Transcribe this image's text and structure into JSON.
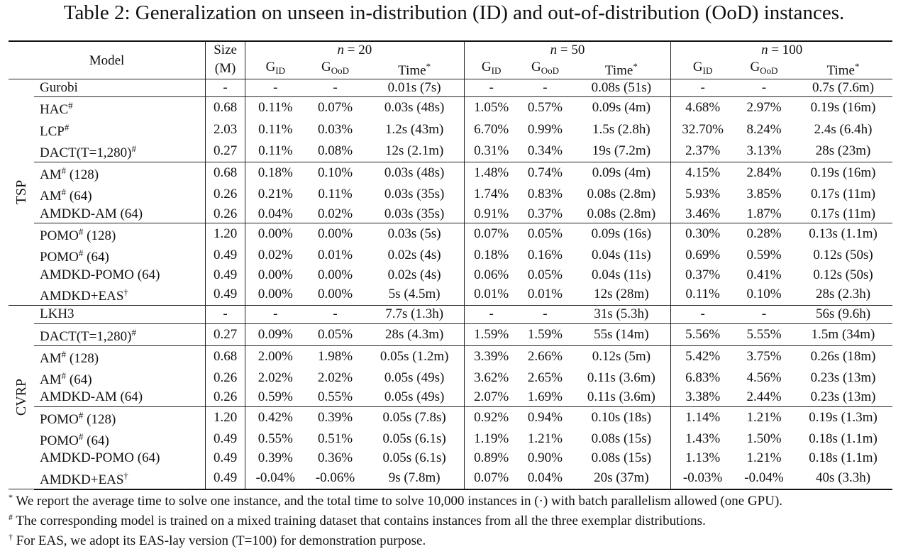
{
  "caption": "Table 2: Generalization on unseen in-distribution (ID) and out-of-distribution (OoD) instances.",
  "header": {
    "model": "Model",
    "size": "Size",
    "size_unit": "(M)",
    "n_eq": "n = ",
    "ns": [
      "20",
      "50",
      "100"
    ],
    "g": "G",
    "id": "ID",
    "ood": "OoD",
    "time": "Time",
    "star": "*"
  },
  "groups": [
    {
      "label": "TSP",
      "blocks": [
        [
          {
            "label": "Gurobi",
            "suffix": "",
            "cells": [
              "-",
              "-",
              "-",
              "0.01s (7s)",
              "-",
              "-",
              "0.08s (51s)",
              "-",
              "-",
              "0.7s (7.6m)"
            ],
            "bold": []
          }
        ],
        [
          {
            "label": "HAC",
            "mark": "#",
            "suffix": "",
            "cells": [
              "0.68",
              "0.11%",
              "0.07%",
              "0.03s (48s)",
              "1.05%",
              "0.57%",
              "0.09s (4m)",
              "4.68%",
              "2.97%",
              "0.19s (16m)"
            ],
            "bold": []
          },
          {
            "label": "LCP",
            "mark": "#",
            "suffix": "",
            "cells": [
              "2.03",
              "0.11%",
              "0.03%",
              "1.2s (43m)",
              "6.70%",
              "0.99%",
              "1.5s (2.8h)",
              "32.70%",
              "8.24%",
              "2.4s (6.4h)"
            ],
            "bold": []
          },
          {
            "label": "DACT(T=1,280)",
            "mark": "#",
            "suffix": "",
            "cells": [
              "0.27",
              "0.11%",
              "0.08%",
              "12s (2.1m)",
              "0.31%",
              "0.34%",
              "19s (7.2m)",
              "2.37%",
              "3.13%",
              "28s (23m)"
            ],
            "bold": []
          }
        ],
        [
          {
            "label": "AM",
            "mark": "#",
            "suffix": " (128)",
            "cells": [
              "0.68",
              "0.18%",
              "0.10%",
              "0.03s (48s)",
              "1.48%",
              "0.74%",
              "0.09s (4m)",
              "4.15%",
              "2.84%",
              "0.19s (16m)"
            ],
            "bold": []
          },
          {
            "label": "AM",
            "mark": "#",
            "suffix": " (64)",
            "cells": [
              "0.26",
              "0.21%",
              "0.11%",
              "0.03s (35s)",
              "1.74%",
              "0.83%",
              "0.08s (2.8m)",
              "5.93%",
              "3.85%",
              "0.17s (11m)"
            ],
            "bold": []
          },
          {
            "label": "AMDKD-AM (64)",
            "suffix": "",
            "cells": [
              "0.26",
              "0.04%",
              "0.02%",
              "0.03s (35s)",
              "0.91%",
              "0.37%",
              "0.08s (2.8m)",
              "3.46%",
              "1.87%",
              "0.17s (11m)"
            ],
            "bold": [
              1,
              2,
              4,
              5,
              7,
              8
            ]
          }
        ],
        [
          {
            "label": "POMO",
            "mark": "#",
            "suffix": " (128)",
            "cells": [
              "1.20",
              "0.00%",
              "0.00%",
              "0.03s (5s)",
              "0.07%",
              "0.05%",
              "0.09s (16s)",
              "0.30%",
              "0.28%",
              "0.13s (1.1m)"
            ],
            "bold": [
              7,
              8
            ]
          },
          {
            "label": "POMO",
            "mark": "#",
            "suffix": " (64)",
            "cells": [
              "0.49",
              "0.02%",
              "0.01%",
              "0.02s (4s)",
              "0.18%",
              "0.16%",
              "0.04s (11s)",
              "0.69%",
              "0.59%",
              "0.12s (50s)"
            ],
            "bold": []
          },
          {
            "label": "AMDKD-POMO (64)",
            "suffix": "",
            "cells": [
              "0.49",
              "0.00%",
              "0.00%",
              "0.02s (4s)",
              "0.06%",
              "0.05%",
              "0.04s (11s)",
              "0.37%",
              "0.41%",
              "0.12s (50s)"
            ],
            "bold": [
              1,
              2,
              4,
              5
            ]
          },
          {
            "label": "AMDKD+EAS",
            "mark": "†",
            "suffix": "",
            "cells": [
              "0.49",
              "0.00%",
              "0.00%",
              "5s (4.5m)",
              "0.01%",
              "0.01%",
              "12s (28m)",
              "0.11%",
              "0.10%",
              "28s (2.3h)"
            ],
            "bold": [
              1,
              2,
              4,
              5,
              7,
              8
            ]
          }
        ]
      ]
    },
    {
      "label": "CVRP",
      "blocks": [
        [
          {
            "label": "LKH3",
            "suffix": "",
            "cells": [
              "-",
              "-",
              "-",
              "7.7s (1.3h)",
              "-",
              "-",
              "31s (5.3h)",
              "-",
              "-",
              "56s (9.6h)"
            ],
            "bold": []
          }
        ],
        [
          {
            "label": "DACT(T=1,280)",
            "mark": "#",
            "suffix": "",
            "cells": [
              "0.27",
              "0.09%",
              "0.05%",
              "28s (4.3m)",
              "1.59%",
              "1.59%",
              "55s (14m)",
              "5.56%",
              "5.55%",
              "1.5m (34m)"
            ],
            "bold": []
          }
        ],
        [
          {
            "label": "AM",
            "mark": "#",
            "suffix": " (128)",
            "cells": [
              "0.68",
              "2.00%",
              "1.98%",
              "0.05s (1.2m)",
              "3.39%",
              "2.66%",
              "0.12s (5m)",
              "5.42%",
              "3.75%",
              "0.26s (18m)"
            ],
            "bold": []
          },
          {
            "label": "AM",
            "mark": "#",
            "suffix": " (64)",
            "cells": [
              "0.26",
              "2.02%",
              "2.02%",
              "0.05s (49s)",
              "3.62%",
              "2.65%",
              "0.11s (3.6m)",
              "6.83%",
              "4.56%",
              "0.23s (13m)"
            ],
            "bold": []
          },
          {
            "label": "AMDKD-AM (64)",
            "suffix": "",
            "cells": [
              "0.26",
              "0.59%",
              "0.55%",
              "0.05s (49s)",
              "2.07%",
              "1.69%",
              "0.11s (3.6m)",
              "3.38%",
              "2.44%",
              "0.23s (13m)"
            ],
            "bold": [
              1,
              2,
              4,
              5,
              7,
              8
            ]
          }
        ],
        [
          {
            "label": "POMO",
            "mark": "#",
            "suffix": " (128)",
            "cells": [
              "1.20",
              "0.42%",
              "0.39%",
              "0.05s (7.8s)",
              "0.92%",
              "0.94%",
              "0.10s (18s)",
              "1.14%",
              "1.21%",
              "0.19s (1.3m)"
            ],
            "bold": []
          },
          {
            "label": "POMO",
            "mark": "#",
            "suffix": " (64)",
            "cells": [
              "0.49",
              "0.55%",
              "0.51%",
              "0.05s (6.1s)",
              "1.19%",
              "1.21%",
              "0.08s (15s)",
              "1.43%",
              "1.50%",
              "0.18s (1.1m)"
            ],
            "bold": []
          },
          {
            "label": "AMDKD-POMO (64)",
            "suffix": "",
            "cells": [
              "0.49",
              "0.39%",
              "0.36%",
              "0.05s (6.1s)",
              "0.89%",
              "0.90%",
              "0.08s (15s)",
              "1.13%",
              "1.21%",
              "0.18s (1.1m)"
            ],
            "bold": [
              1,
              2,
              4,
              5,
              7,
              8
            ]
          },
          {
            "label": "AMDKD+EAS",
            "mark": "†",
            "suffix": "",
            "cells": [
              "0.49",
              "-0.04%",
              "-0.06%",
              "9s (7.8m)",
              "0.07%",
              "0.04%",
              "20s (37m)",
              "-0.03%",
              "-0.04%",
              "40s (3.3h)"
            ],
            "bold": [
              1,
              2,
              4,
              5,
              7,
              8
            ]
          }
        ]
      ]
    }
  ],
  "footnotes": [
    {
      "mark": "*",
      "text": " We report the average time to solve one instance, and the total time to solve 10,000 instances in (·) with batch parallelism allowed (one GPU)."
    },
    {
      "mark": "#",
      "text": " The corresponding model is trained on a mixed training dataset that contains instances from all the three exemplar distributions."
    },
    {
      "mark": "†",
      "text": " For EAS, we adopt its EAS-lay version (T=100) for demonstration purpose."
    }
  ]
}
